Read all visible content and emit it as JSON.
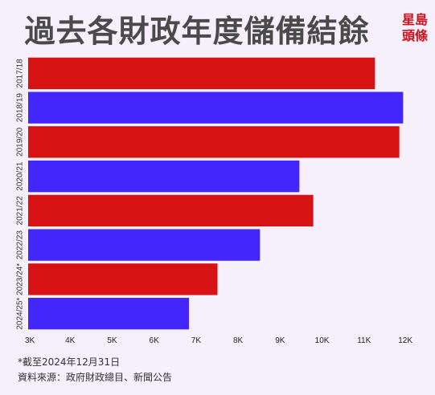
{
  "title": "過去各財政年度儲備結餘",
  "logo": {
    "line1": "星島",
    "line2": "頭條",
    "color": "#d10f18"
  },
  "footnotes": {
    "note": "*截至2024年12月31日",
    "source": "資料來源：政府財政總目、新聞公告"
  },
  "chart_data": {
    "type": "bar",
    "orientation": "horizontal",
    "title": "過去各財政年度儲備結餘",
    "categories": [
      "2017/18",
      "2018/19",
      "2019/20",
      "2020/21",
      "2021/22",
      "2022/23",
      "2023/24*",
      "2024/25*"
    ],
    "values": [
      11260,
      11930,
      11840,
      9460,
      9790,
      8520,
      7510,
      6830
    ],
    "xlim": [
      3000,
      12000
    ],
    "x_ticks": [
      3000,
      4000,
      5000,
      6000,
      7000,
      8000,
      9000,
      10000,
      11000,
      12000
    ],
    "x_tick_labels": [
      "3K",
      "4K",
      "5K",
      "6K",
      "7K",
      "8K",
      "9K",
      "10K",
      "11K",
      "12K"
    ],
    "bar_colors": [
      "#d61212",
      "#4326fb",
      "#d61212",
      "#4326fb",
      "#d61212",
      "#4326fb",
      "#d61212",
      "#4326fb"
    ],
    "grid": false,
    "legend": "none",
    "xlabel": "",
    "ylabel": ""
  }
}
